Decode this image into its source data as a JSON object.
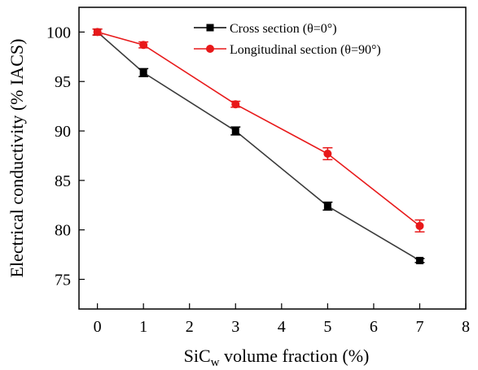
{
  "chart_data": {
    "type": "line",
    "xlabel": "SiCw volume fraction (%)",
    "xlabel_parts": {
      "prefix": "SiC",
      "subscript": "w",
      "suffix": " volume fraction (%)"
    },
    "ylabel": "Electrical conductivity (% IACS)",
    "xlim": [
      -0.4,
      8
    ],
    "ylim": [
      72,
      102.5
    ],
    "xticks": [
      0,
      1,
      2,
      3,
      4,
      5,
      6,
      7,
      8
    ],
    "yticks": [
      75,
      80,
      85,
      90,
      95,
      100
    ],
    "grid": false,
    "legend_position": "top-right",
    "series": [
      {
        "name": "Cross section (θ=0°)",
        "color": "#000000",
        "marker": "square",
        "x": [
          0,
          1,
          3,
          5,
          7
        ],
        "y": [
          100.0,
          95.9,
          90.0,
          82.4,
          76.9
        ],
        "err": [
          0.3,
          0.4,
          0.4,
          0.4,
          0.2
        ]
      },
      {
        "name": "Longitudinal section (θ=90°)",
        "color": "#e8191a",
        "marker": "circle",
        "x": [
          0,
          1,
          3,
          5,
          7
        ],
        "y": [
          100.0,
          98.7,
          92.7,
          87.7,
          80.4
        ],
        "err": [
          0.3,
          0.3,
          0.3,
          0.6,
          0.6
        ]
      }
    ]
  }
}
